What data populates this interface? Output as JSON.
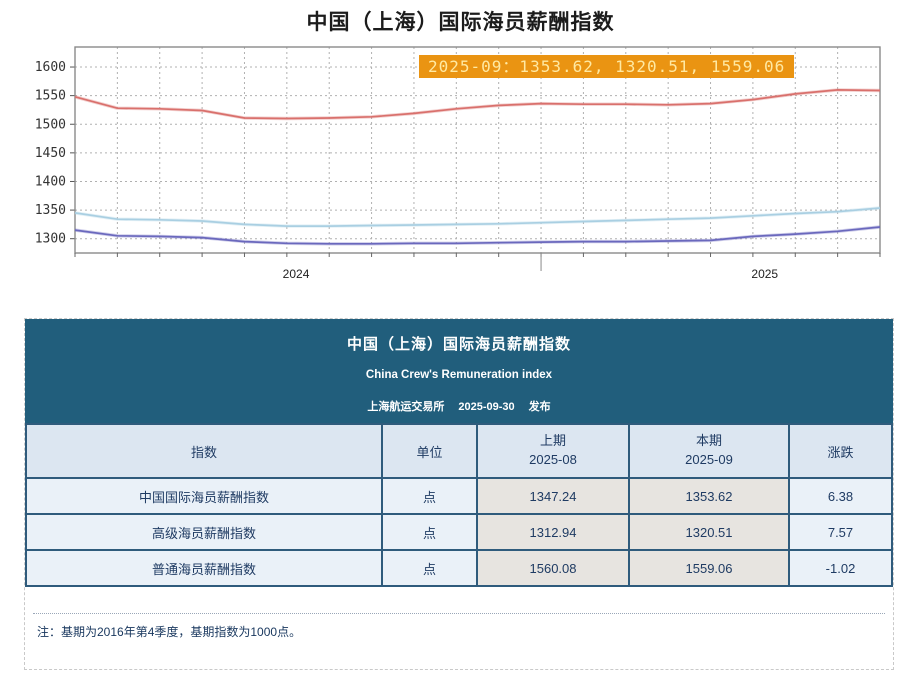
{
  "page_title": "中国（上海）国际海员薪酬指数",
  "colors": {
    "header_teal": "#215e7c",
    "tooltip_bg": "#ea9412",
    "tooltip_text": "#ffe9a2",
    "table_border": "#2f5b7c",
    "row_blue": "#eaf1f8",
    "period_gray": "#e7e4e0",
    "col_header_bg": "#dce6f1"
  },
  "chart_data": {
    "type": "line",
    "title": "中国（上海）国际海员薪酬指数",
    "x": [
      "2024-02",
      "2024-03",
      "2024-04",
      "2024-05",
      "2024-06",
      "2024-07",
      "2024-08",
      "2024-09",
      "2024-10",
      "2024-11",
      "2024-12",
      "2025-01",
      "2025-02",
      "2025-03",
      "2025-04",
      "2025-05",
      "2025-06",
      "2025-07",
      "2025-08",
      "2025-09"
    ],
    "series": [
      {
        "name": "中国国际海员薪酬指数",
        "color": "#a9cfe2",
        "values": [
          1345,
          1334,
          1333,
          1331,
          1325,
          1322,
          1322,
          1323,
          1324,
          1325,
          1326,
          1328,
          1330,
          1332,
          1334,
          1336,
          1340,
          1344,
          1347.24,
          1353.62
        ]
      },
      {
        "name": "高级海员薪酬指数",
        "color": "#6a68bd",
        "values": [
          1315,
          1305,
          1304,
          1302,
          1295,
          1292,
          1291,
          1291,
          1292,
          1292,
          1293,
          1294,
          1295,
          1295,
          1296,
          1297,
          1304,
          1308,
          1312.94,
          1320.51
        ]
      },
      {
        "name": "普通海员薪酬指数",
        "color": "#d9706c",
        "values": [
          1548,
          1528,
          1527,
          1524,
          1511,
          1510,
          1511,
          1513,
          1519,
          1527,
          1533,
          1536,
          1535,
          1535,
          1534,
          1536,
          1543,
          1553,
          1560.08,
          1559.06
        ]
      }
    ],
    "ylim": [
      1275,
      1635
    ],
    "yticks": [
      1300,
      1350,
      1400,
      1450,
      1500,
      1550,
      1600
    ],
    "year_labels": [
      "2024",
      "2025"
    ],
    "year_boundary_index": 11,
    "grid": "dashed both axes",
    "legend": "none",
    "annotation": "2025-09：1353.62, 1320.51, 1559.06"
  },
  "tooltip": {
    "text": "2025-09：1353.62, 1320.51, 1559.06"
  },
  "table": {
    "title": "中国（上海）国际海员薪酬指数",
    "subtitle": "China Crew's Remuneration index",
    "publisher": "上海航运交易所",
    "publish_date": "2025-09-30",
    "publish_suffix": "发布",
    "columns": {
      "index": "指数",
      "unit": "单位",
      "prev_label": "上期",
      "prev_period": "2025-08",
      "curr_label": "本期",
      "curr_period": "2025-09",
      "change": "涨跌"
    },
    "rows": [
      {
        "name": "中国国际海员薪酬指数",
        "unit": "点",
        "prev": "1347.24",
        "curr": "1353.62",
        "change": "6.38"
      },
      {
        "name": "高级海员薪酬指数",
        "unit": "点",
        "prev": "1312.94",
        "curr": "1320.51",
        "change": "7.57"
      },
      {
        "name": "普通海员薪酬指数",
        "unit": "点",
        "prev": "1560.08",
        "curr": "1559.06",
        "change": "-1.02"
      }
    ],
    "note": "注：基期为2016年第4季度，基期指数为1000点。"
  }
}
